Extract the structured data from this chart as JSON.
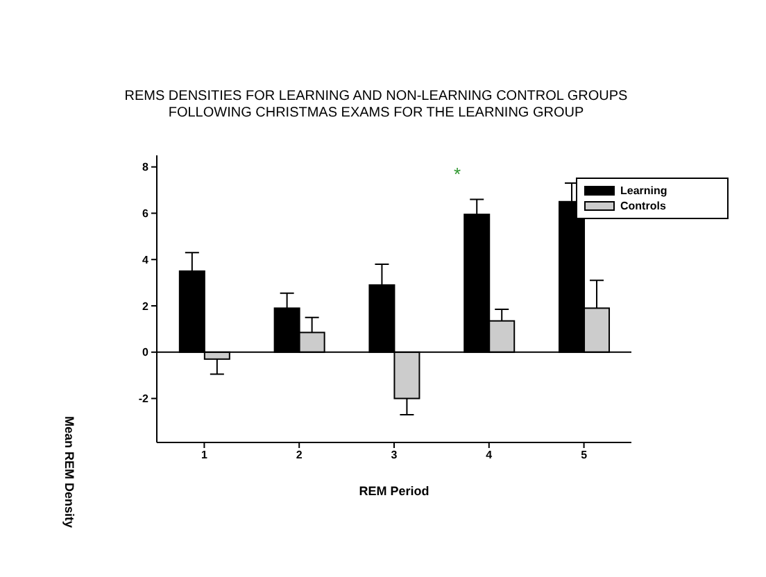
{
  "chart_data": {
    "type": "bar",
    "title": "REMS DENSITIES FOR LEARNING AND NON-LEARNING CONTROL GROUPS\nFOLLOWING CHRISTMAS EXAMS FOR THE LEARNING GROUP",
    "xlabel": "REM Period",
    "ylabel": "Mean REM Density",
    "categories": [
      "1",
      "2",
      "3",
      "4",
      "5"
    ],
    "series": [
      {
        "name": "Learning",
        "color": "#000000",
        "values": [
          3.5,
          1.9,
          2.9,
          5.95,
          6.5
        ],
        "errors": [
          [
            3.5,
            4.3
          ],
          [
            1.9,
            2.55
          ],
          [
            2.9,
            3.8
          ],
          [
            5.95,
            6.6
          ],
          [
            6.5,
            7.3
          ]
        ]
      },
      {
        "name": "Controls",
        "color": "#cccccc",
        "values": [
          -0.3,
          0.85,
          -2.0,
          1.35,
          1.9
        ],
        "errors": [
          [
            -0.95,
            -0.3
          ],
          [
            0.85,
            1.5
          ],
          [
            -2.7,
            -2.0
          ],
          [
            1.35,
            1.85
          ],
          [
            1.9,
            3.1
          ]
        ]
      }
    ],
    "ylim": [
      -3.9,
      8.5
    ],
    "yticks": [
      -2,
      0,
      2,
      4,
      6,
      8
    ],
    "ref_lines": [
      {
        "axis": "y",
        "value": 0,
        "color": "#000000"
      }
    ],
    "annotations": [
      "*"
    ],
    "legend": "top right",
    "grid": false
  }
}
